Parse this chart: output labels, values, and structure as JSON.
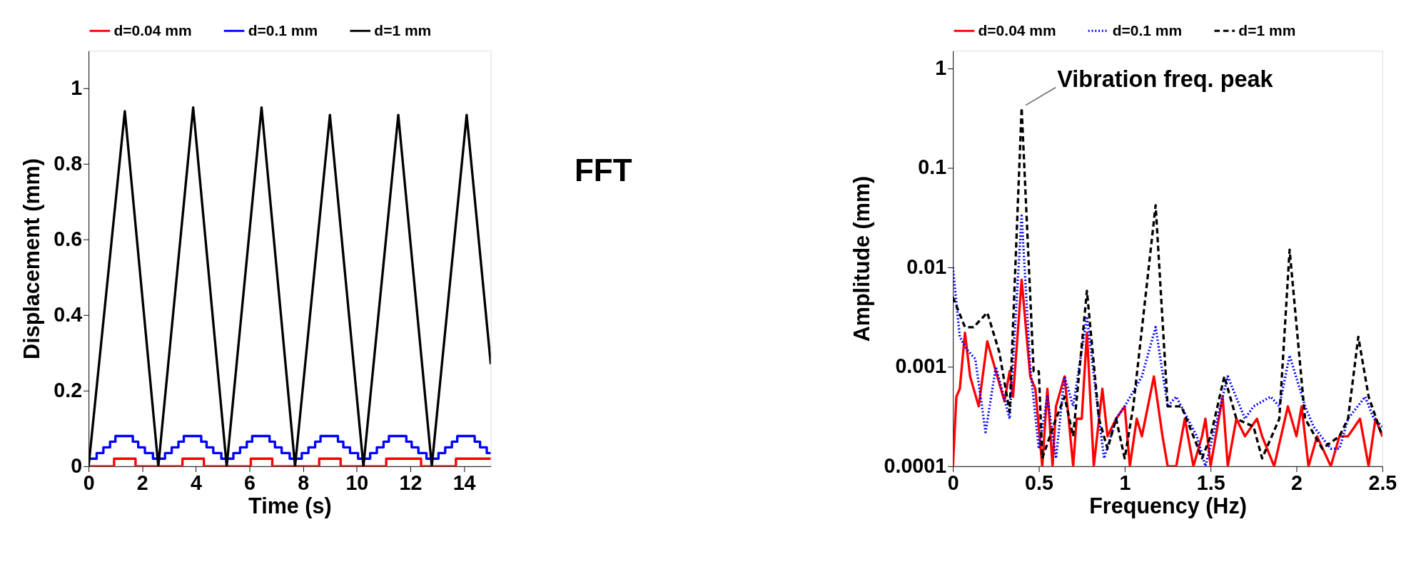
{
  "chart_data": [
    {
      "type": "line",
      "xlabel": "Time (s)",
      "ylabel": "Displacement (mm)",
      "xlim": [
        0,
        15
      ],
      "xticks": [
        0,
        2,
        4,
        6,
        8,
        10,
        12,
        14
      ],
      "ylim": [
        0,
        1.1
      ],
      "yticks": [
        0,
        0.2,
        0.4,
        0.6,
        0.8,
        1
      ],
      "grid": false,
      "legend": "top",
      "line_style": "solid",
      "annotations": [
        "FFT"
      ],
      "series": [
        {
          "name": "d=0.04 mm",
          "color": "#ff0000",
          "type": "step",
          "x": [
            0,
            0.95,
            1.75,
            3.5,
            4.3,
            6.05,
            6.85,
            8.6,
            9.4,
            11.1,
            12.4,
            13.7,
            15
          ],
          "values": [
            0,
            0.02,
            0,
            0.02,
            0,
            0.02,
            0,
            0.02,
            0,
            0.02,
            0,
            0.02,
            0.02
          ]
        },
        {
          "name": "d=0.1 mm",
          "color": "#0000ff",
          "type": "step",
          "x": [
            0,
            0.3,
            0.55,
            0.8,
            1.0,
            1.65,
            1.85,
            2.1,
            2.4,
            2.85,
            3.1,
            3.35,
            3.55,
            4.2,
            4.4,
            4.65,
            4.95,
            5.4,
            5.65,
            5.9,
            6.1,
            6.75,
            6.95,
            7.2,
            7.5,
            7.95,
            8.2,
            8.45,
            8.65,
            9.3,
            9.5,
            9.75,
            10.05,
            10.5,
            10.75,
            11.0,
            11.2,
            11.85,
            12.05,
            12.3,
            12.6,
            13.05,
            13.3,
            13.55,
            13.75,
            14.4,
            14.6,
            14.85,
            15
          ],
          "values": [
            0.02,
            0.035,
            0.05,
            0.065,
            0.08,
            0.065,
            0.05,
            0.035,
            0.02,
            0.035,
            0.05,
            0.065,
            0.08,
            0.065,
            0.05,
            0.035,
            0.02,
            0.035,
            0.05,
            0.065,
            0.08,
            0.065,
            0.05,
            0.035,
            0.02,
            0.035,
            0.05,
            0.065,
            0.08,
            0.065,
            0.05,
            0.035,
            0.02,
            0.035,
            0.05,
            0.065,
            0.08,
            0.065,
            0.05,
            0.035,
            0.02,
            0.035,
            0.05,
            0.065,
            0.08,
            0.065,
            0.05,
            0.035,
            0.035
          ]
        },
        {
          "name": "d=1 mm",
          "color": "#000000",
          "type": "line",
          "x": [
            0,
            1.35,
            2.6,
            3.9,
            5.15,
            6.45,
            7.7,
            9.0,
            10.25,
            11.55,
            12.8,
            14.1,
            15
          ],
          "values": [
            0,
            0.94,
            0,
            0.95,
            0,
            0.95,
            0,
            0.93,
            0,
            0.93,
            0,
            0.93,
            0.27
          ]
        }
      ]
    },
    {
      "type": "line",
      "xlabel": "Frequency (Hz)",
      "ylabel": "Amplitude (mm)",
      "xlim": [
        0,
        2.5
      ],
      "xticks": [
        0,
        0.5,
        1,
        1.5,
        2,
        2.5
      ],
      "ylim": [
        0.0001,
        1.5
      ],
      "yticks": [
        0.0001,
        0.001,
        0.01,
        0.1,
        1
      ],
      "log": "y",
      "grid": false,
      "legend": "top",
      "annotations": [
        {
          "text": "Vibration freq. peak",
          "x": 0.4,
          "y": 0.4
        }
      ],
      "series": [
        {
          "name": "d=0.04 mm",
          "color": "#ff0000",
          "line_style": "solid",
          "x": [
            0,
            0.02,
            0.04,
            0.07,
            0.1,
            0.15,
            0.2,
            0.3,
            0.33,
            0.35,
            0.4,
            0.45,
            0.48,
            0.52,
            0.55,
            0.58,
            0.6,
            0.65,
            0.7,
            0.72,
            0.75,
            0.78,
            0.82,
            0.87,
            0.9,
            0.95,
            1.0,
            1.03,
            1.07,
            1.1,
            1.17,
            1.22,
            1.25,
            1.3,
            1.35,
            1.4,
            1.45,
            1.47,
            1.5,
            1.57,
            1.6,
            1.65,
            1.7,
            1.77,
            1.8,
            1.87,
            1.95,
            2.0,
            2.03,
            2.07,
            2.12,
            2.2,
            2.25,
            2.3,
            2.37,
            2.42,
            2.46,
            2.5
          ],
          "values": [
            0.0001,
            0.0005,
            0.0006,
            0.0022,
            0.0008,
            0.0004,
            0.0018,
            0.00045,
            0.0009,
            0.0005,
            0.0075,
            0.0008,
            0.0006,
            0.0001,
            0.0006,
            0.0001,
            0.0004,
            0.0008,
            0.0001,
            0.0003,
            0.0003,
            0.0022,
            0.0001,
            0.0006,
            0.0002,
            0.0003,
            0.0004,
            0.0001,
            0.0003,
            0.0002,
            0.0008,
            0.0002,
            0.0001,
            0.0001,
            0.0003,
            0.0001,
            0.0002,
            0.0003,
            0.0001,
            0.0005,
            0.0001,
            0.0003,
            0.0002,
            0.0003,
            0.0002,
            0.0001,
            0.0004,
            0.0002,
            0.0004,
            0.0001,
            0.0002,
            0.0001,
            0.0002,
            0.0002,
            0.0003,
            0.0001,
            0.0003,
            0.0002
          ]
        },
        {
          "name": "d=0.1 mm",
          "color": "#0000ff",
          "line_style": "dotted",
          "x": [
            0,
            0.04,
            0.08,
            0.13,
            0.19,
            0.25,
            0.33,
            0.4,
            0.45,
            0.5,
            0.55,
            0.6,
            0.65,
            0.7,
            0.78,
            0.85,
            0.88,
            0.95,
            1.0,
            1.1,
            1.18,
            1.25,
            1.3,
            1.42,
            1.47,
            1.6,
            1.7,
            1.75,
            1.85,
            1.9,
            1.96,
            2.05,
            2.1,
            2.2,
            2.25,
            2.3,
            2.4,
            2.45,
            2.5
          ],
          "values": [
            0.01,
            0.002,
            0.0015,
            0.0012,
            0.00022,
            0.001,
            0.0003,
            0.033,
            0.001,
            0.00015,
            0.0005,
            0.00012,
            0.0008,
            0.0004,
            0.0032,
            0.0003,
            0.00012,
            0.0003,
            0.0004,
            0.0008,
            0.0025,
            0.0004,
            0.0005,
            0.0002,
            0.0001,
            0.0008,
            0.0003,
            0.0004,
            0.0005,
            0.0004,
            0.0013,
            0.0004,
            0.00025,
            0.00015,
            0.00015,
            0.0003,
            0.0005,
            0.0003,
            0.00025
          ]
        },
        {
          "name": "d=1 mm",
          "color": "#000000",
          "line_style": "dashed",
          "x": [
            0,
            0.07,
            0.12,
            0.2,
            0.27,
            0.33,
            0.4,
            0.47,
            0.5,
            0.52,
            0.6,
            0.65,
            0.7,
            0.78,
            0.85,
            0.9,
            0.95,
            1.0,
            1.05,
            1.18,
            1.25,
            1.33,
            1.4,
            1.45,
            1.5,
            1.58,
            1.65,
            1.75,
            1.8,
            1.9,
            1.96,
            2.05,
            2.15,
            2.25,
            2.3,
            2.36,
            2.42,
            2.5
          ],
          "values": [
            0.005,
            0.0025,
            0.0025,
            0.0035,
            0.0014,
            0.00035,
            0.4,
            0.0009,
            0.0009,
            0.00012,
            0.0003,
            0.0005,
            0.0002,
            0.0058,
            0.0003,
            0.00015,
            0.0003,
            0.00012,
            0.0004,
            0.042,
            0.0004,
            0.0004,
            0.0002,
            0.00012,
            0.0002,
            0.0008,
            0.0003,
            0.00025,
            0.00012,
            0.0003,
            0.015,
            0.0003,
            0.00015,
            0.0002,
            0.0003,
            0.002,
            0.0005,
            0.0002
          ]
        }
      ]
    }
  ]
}
